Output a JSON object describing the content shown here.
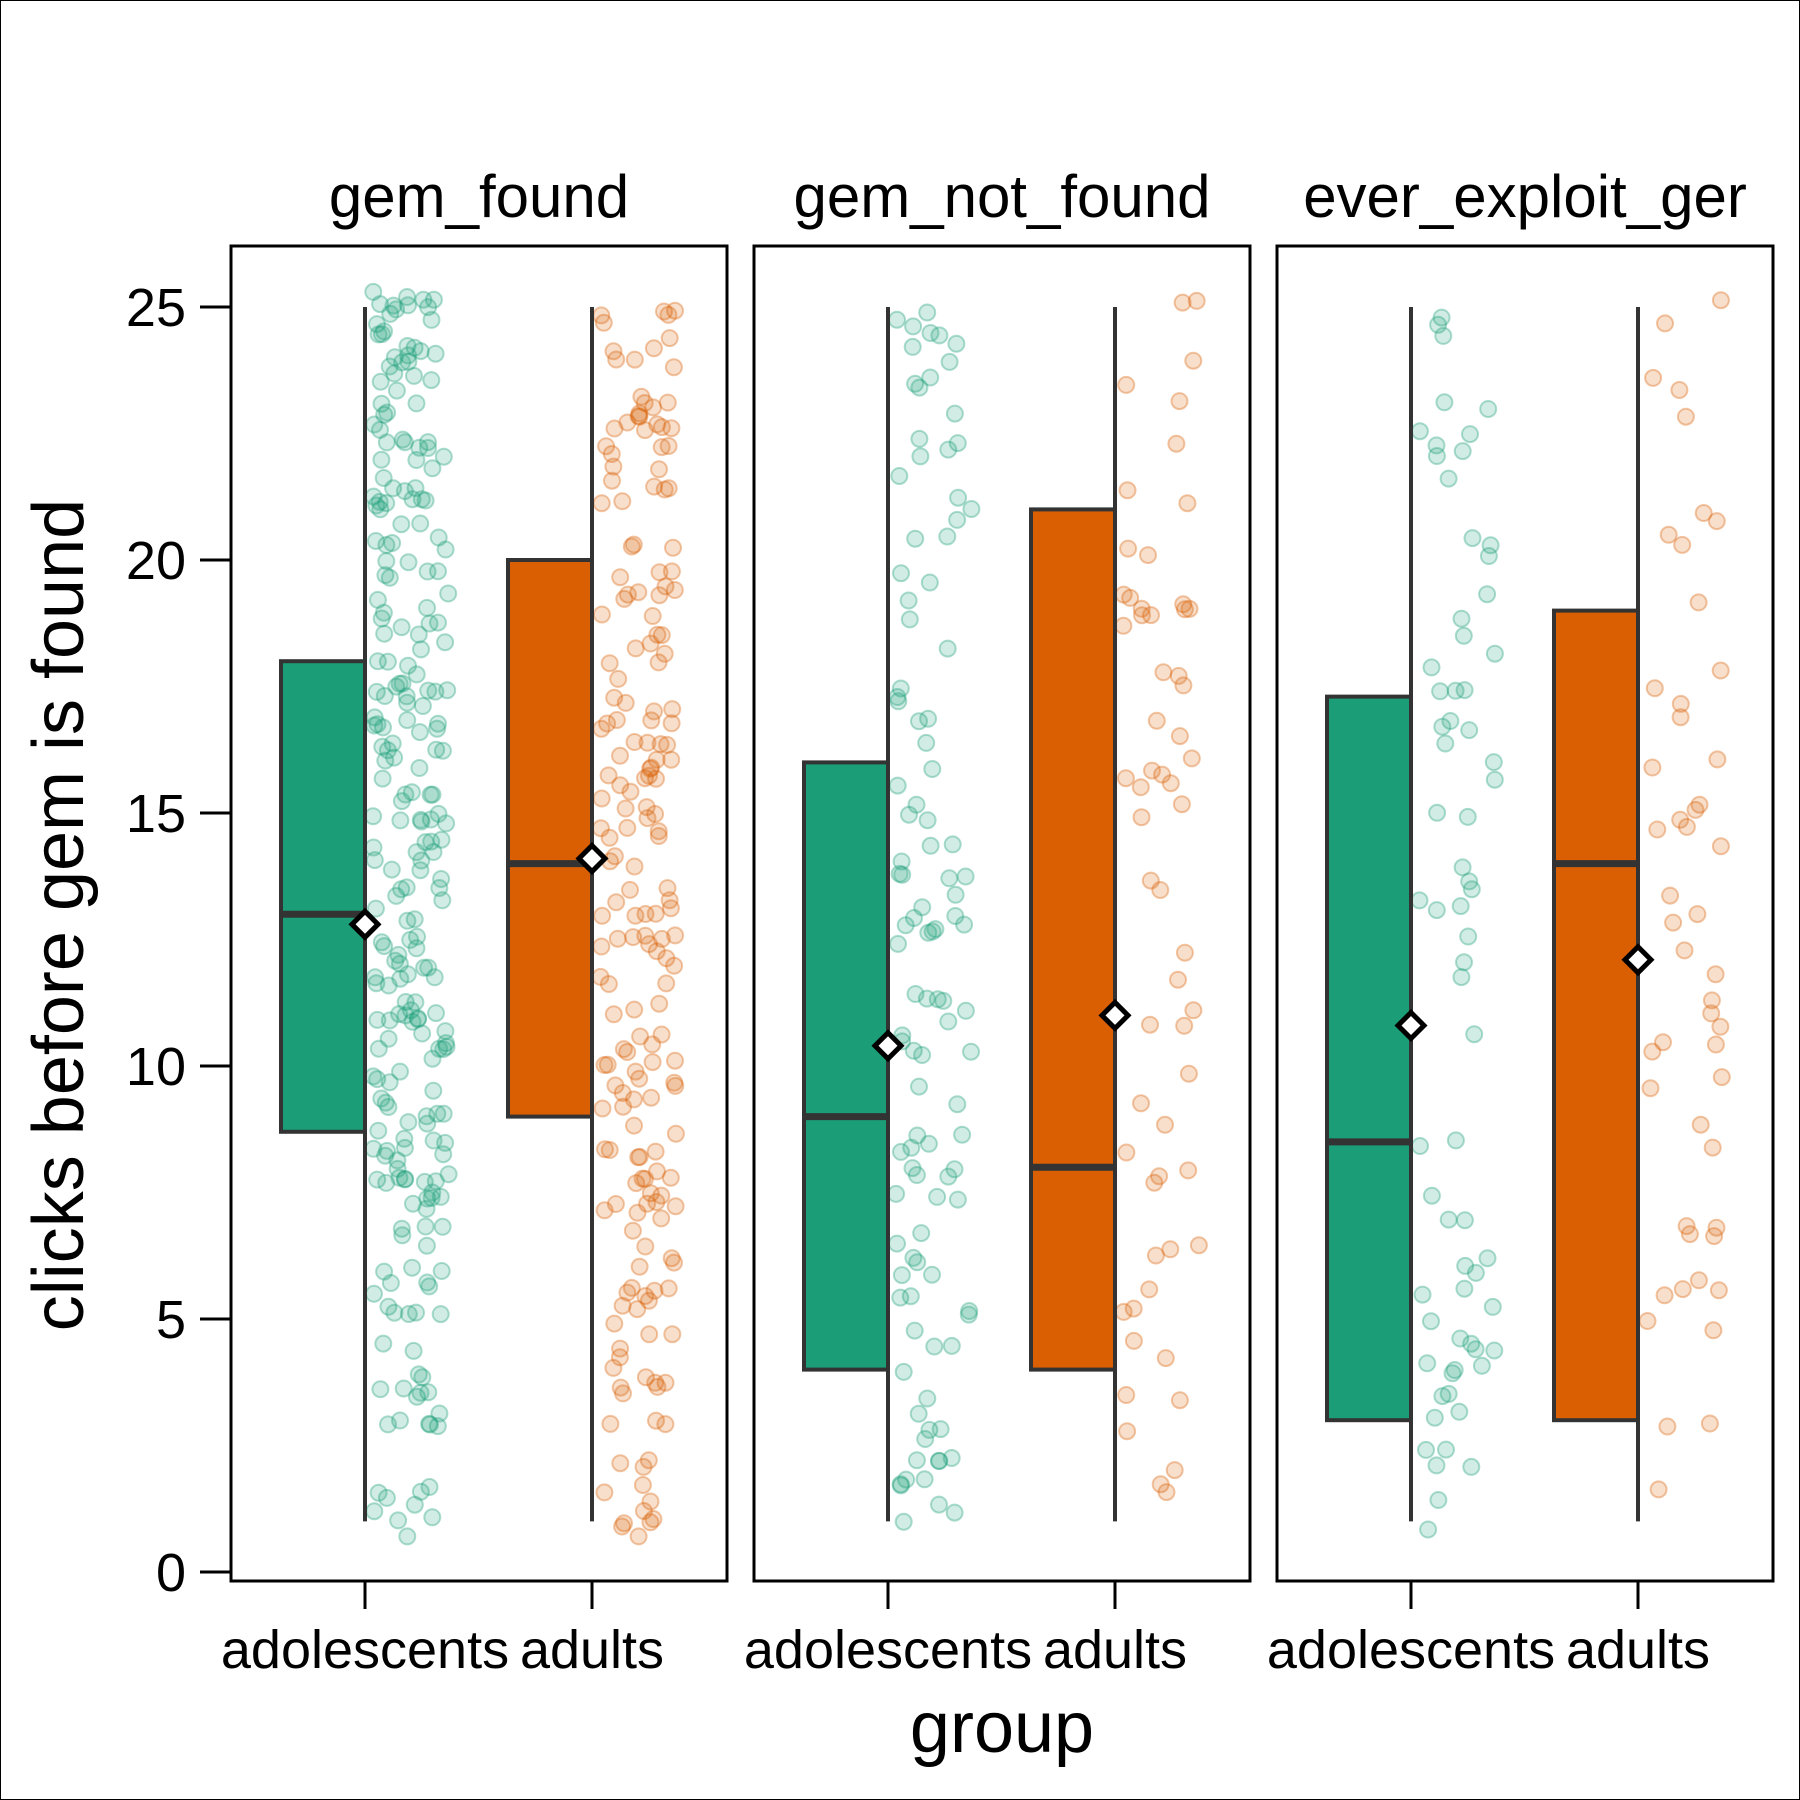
{
  "chart_data": {
    "type": "boxplot",
    "xlabel": "group",
    "ylabel": "clicks before gem is found",
    "ylim": [
      0,
      26
    ],
    "yticks": [
      0,
      5,
      10,
      15,
      20,
      25
    ],
    "categories": [
      "adolescents",
      "adults"
    ],
    "legend": "none",
    "grid": false,
    "colors": {
      "adolescents": "#1b9e77",
      "adults": "#d95f02"
    },
    "facets": [
      {
        "title": "gem_found",
        "boxes": [
          {
            "group": "adolescents",
            "whisker_low": 1,
            "q1": 8.7,
            "median": 13,
            "q3": 18,
            "whisker_high": 25,
            "mean": 12.8
          },
          {
            "group": "adults",
            "whisker_low": 1,
            "q1": 9,
            "median": 14,
            "q3": 20,
            "whisker_high": 25,
            "mean": 14.1
          }
        ],
        "point_counts": {
          "adolescents": 260,
          "adults": 200
        }
      },
      {
        "title": "gem_not_found",
        "boxes": [
          {
            "group": "adolescents",
            "whisker_low": 1,
            "q1": 4,
            "median": 9,
            "q3": 16,
            "whisker_high": 25,
            "mean": 10.4
          },
          {
            "group": "adults",
            "whisker_low": 1,
            "q1": 4,
            "median": 8,
            "q3": 21,
            "whisker_high": 25,
            "mean": 11
          }
        ],
        "point_counts": {
          "adolescents": 110,
          "adults": 60
        }
      },
      {
        "title": "ever_exploit_ger",
        "boxes": [
          {
            "group": "adolescents",
            "whisker_low": 1,
            "q1": 3,
            "median": 8.5,
            "q3": 17.3,
            "whisker_high": 25,
            "mean": 10.8
          },
          {
            "group": "adults",
            "whisker_low": 1,
            "q1": 3,
            "median": 14,
            "q3": 19,
            "whisker_high": 25,
            "mean": 12.1
          }
        ],
        "point_counts": {
          "adolescents": 70,
          "adults": 50
        }
      }
    ]
  }
}
